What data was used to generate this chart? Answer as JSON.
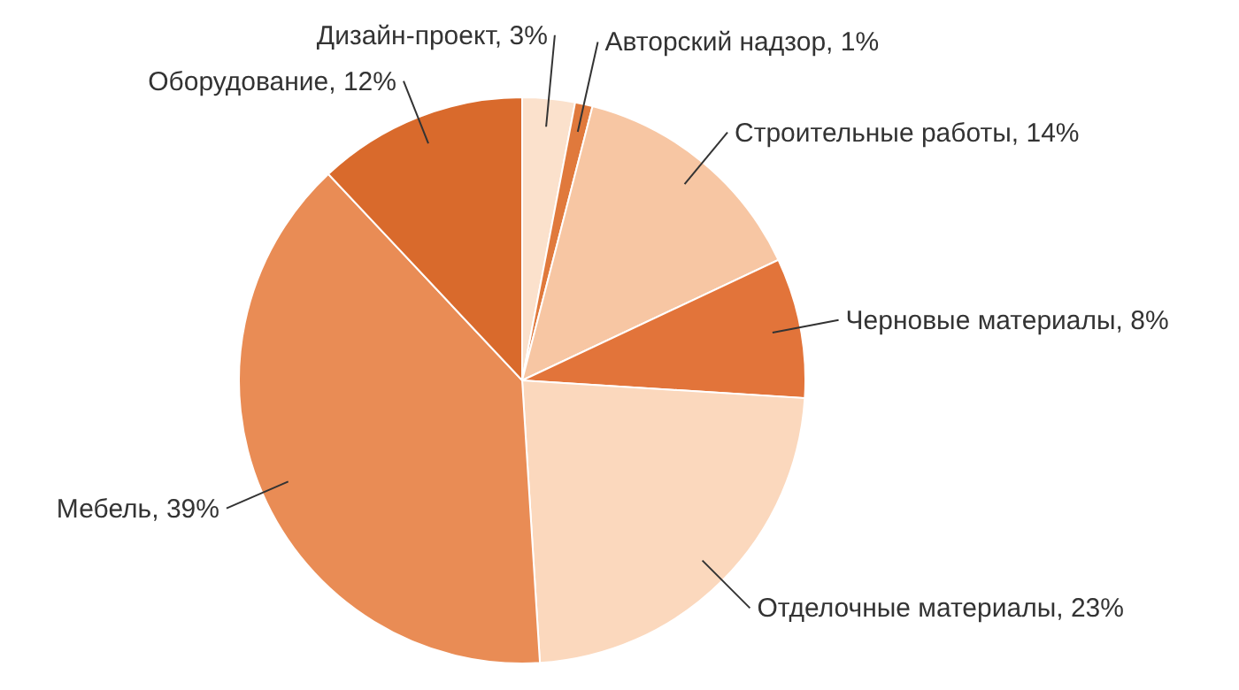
{
  "chart_data": {
    "type": "pie",
    "categories": [
      "Дизайн-проект, 3%",
      "Авторский надзор, 1%",
      "Строительные работы, 14%",
      "Черновые материалы, 8%",
      "Отделочные материалы, 23%",
      "Мебель, 39%",
      "Оборудование, 12%"
    ],
    "values": [
      3,
      1,
      14,
      8,
      23,
      39,
      12
    ],
    "colors": [
      "#fbe1cc",
      "#e0793c",
      "#f7c6a3",
      "#e2743a",
      "#fbd8bd",
      "#e98c55",
      "#d96a2c"
    ]
  }
}
